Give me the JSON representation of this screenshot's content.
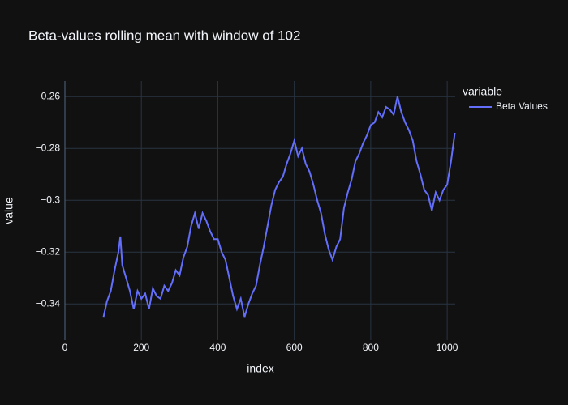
{
  "chart_data": {
    "type": "line",
    "title": "Beta-values rolling mean with window of 102",
    "x_label": "index",
    "y_label": "value",
    "legend_title": "variable",
    "legend_position": "right",
    "grid": true,
    "xlim": [
      0,
      1021
    ],
    "ylim": [
      -0.354,
      -0.254
    ],
    "xticks": [
      0,
      200,
      400,
      600,
      800,
      1000
    ],
    "yticks": [
      {
        "value": -0.34,
        "label": "−0.34"
      },
      {
        "value": -0.32,
        "label": "−0.32"
      },
      {
        "value": -0.3,
        "label": "−0.3"
      },
      {
        "value": -0.28,
        "label": "−0.28"
      },
      {
        "value": -0.26,
        "label": "−0.26"
      }
    ],
    "x": [
      101,
      110,
      120,
      130,
      140,
      145,
      150,
      160,
      170,
      180,
      190,
      200,
      210,
      220,
      230,
      240,
      250,
      260,
      270,
      280,
      290,
      300,
      310,
      320,
      330,
      340,
      350,
      360,
      370,
      380,
      390,
      400,
      410,
      420,
      430,
      440,
      450,
      460,
      470,
      480,
      490,
      500,
      510,
      520,
      530,
      540,
      550,
      560,
      570,
      580,
      590,
      600,
      610,
      620,
      630,
      640,
      650,
      660,
      670,
      680,
      690,
      700,
      710,
      720,
      730,
      740,
      750,
      760,
      770,
      780,
      790,
      800,
      810,
      820,
      830,
      840,
      850,
      860,
      870,
      880,
      890,
      900,
      910,
      920,
      930,
      940,
      950,
      960,
      970,
      980,
      990,
      1000,
      1010,
      1020
    ],
    "series": [
      {
        "name": "Beta Values",
        "color": "#636efa",
        "values": [
          -0.345,
          -0.339,
          -0.335,
          -0.327,
          -0.32,
          -0.314,
          -0.325,
          -0.33,
          -0.335,
          -0.342,
          -0.335,
          -0.338,
          -0.336,
          -0.342,
          -0.334,
          -0.337,
          -0.338,
          -0.333,
          -0.335,
          -0.332,
          -0.327,
          -0.329,
          -0.322,
          -0.318,
          -0.31,
          -0.305,
          -0.311,
          -0.305,
          -0.308,
          -0.312,
          -0.315,
          -0.315,
          -0.32,
          -0.323,
          -0.33,
          -0.337,
          -0.342,
          -0.338,
          -0.345,
          -0.34,
          -0.336,
          -0.333,
          -0.325,
          -0.318,
          -0.31,
          -0.302,
          -0.296,
          -0.293,
          -0.291,
          -0.286,
          -0.282,
          -0.277,
          -0.283,
          -0.28,
          -0.286,
          -0.289,
          -0.294,
          -0.3,
          -0.305,
          -0.313,
          -0.319,
          -0.323,
          -0.318,
          -0.315,
          -0.303,
          -0.297,
          -0.292,
          -0.285,
          -0.282,
          -0.278,
          -0.275,
          -0.271,
          -0.27,
          -0.266,
          -0.268,
          -0.264,
          -0.265,
          -0.267,
          -0.26,
          -0.266,
          -0.27,
          -0.273,
          -0.277,
          -0.285,
          -0.29,
          -0.296,
          -0.298,
          -0.304,
          -0.297,
          -0.3,
          -0.296,
          -0.294,
          -0.285,
          -0.274
        ]
      }
    ]
  }
}
